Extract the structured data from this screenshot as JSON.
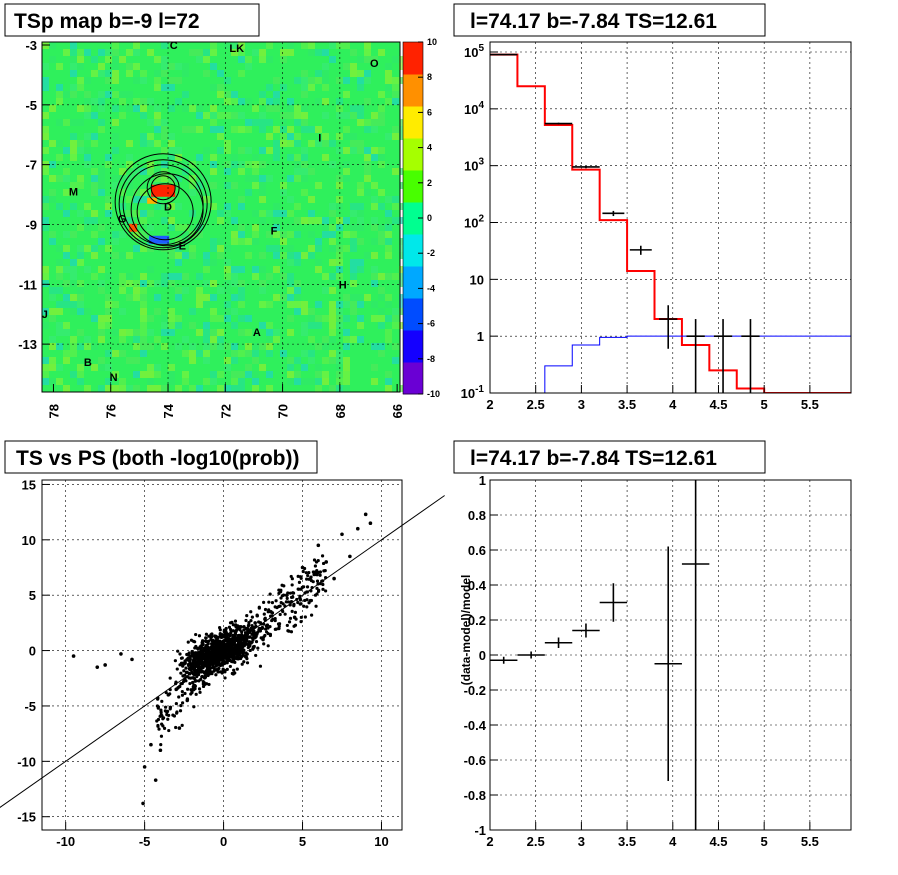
{
  "chart_data": [
    {
      "type": "heatmap",
      "title": "TSp map b=-9 l=72",
      "x_ticks": [
        "78",
        "76",
        "74",
        "72",
        "70",
        "68",
        "66"
      ],
      "y_ticks": [
        "-3",
        "-5",
        "-7",
        "-9",
        "-11",
        "-13"
      ],
      "xlim": [
        78.4,
        65.9
      ],
      "ylim": [
        -14.6,
        -2.9
      ],
      "colorbar": {
        "range": [
          -10,
          10
        ],
        "ticks": [
          "10",
          "8",
          "6",
          "4",
          "2",
          "0",
          "-2",
          "-4",
          "-6",
          "-8",
          "-10"
        ],
        "colors": [
          "#6a00d4",
          "#1400ff",
          "#004cff",
          "#00a8ff",
          "#00e8ea",
          "#00ff90",
          "#48ff00",
          "#a6ff00",
          "#ffec00",
          "#ff9000",
          "#ff2200"
        ]
      },
      "background_color": "#2ff05c",
      "source_labels": [
        {
          "text": "C",
          "l": 73.8,
          "b": -3.0
        },
        {
          "text": "LK",
          "l": 71.6,
          "b": -3.1
        },
        {
          "text": "O",
          "l": 66.8,
          "b": -3.6
        },
        {
          "text": "I",
          "l": 68.7,
          "b": -6.1
        },
        {
          "text": "M",
          "l": 77.3,
          "b": -7.9
        },
        {
          "text": "D",
          "l": 74.0,
          "b": -8.4
        },
        {
          "text": "G",
          "l": 75.6,
          "b": -8.8
        },
        {
          "text": "E",
          "l": 73.5,
          "b": -9.7
        },
        {
          "text": "F",
          "l": 70.3,
          "b": -9.2
        },
        {
          "text": "H",
          "l": 67.9,
          "b": -11.0
        },
        {
          "text": "J",
          "l": 78.3,
          "b": -12.0
        },
        {
          "text": "A",
          "l": 70.9,
          "b": -12.6
        },
        {
          "text": "B",
          "l": 76.8,
          "b": -13.6
        },
        {
          "text": "N",
          "l": 75.9,
          "b": -14.1
        }
      ],
      "target": {
        "l": 74.17,
        "b": -7.84
      }
    },
    {
      "type": "line",
      "title": "l=74.17 b=-7.84 TS=12.61",
      "y_scale": "log",
      "xlim": [
        2.0,
        5.95
      ],
      "ylim": [
        0.1,
        150000
      ],
      "x_ticks": [
        "2",
        "2.5",
        "3",
        "3.5",
        "4",
        "4.5",
        "5",
        "5.5"
      ],
      "y_ticks": [
        "10^5",
        "10^4",
        "10^3",
        "10^2",
        "10",
        "1",
        "10^-1"
      ],
      "bin_edges": [
        2.0,
        2.3,
        2.6,
        2.9,
        3.2,
        3.5,
        3.8,
        4.1,
        4.4,
        4.7,
        5.0,
        5.95
      ],
      "series": [
        {
          "name": "",
          "color": "#ff0000",
          "style": "step",
          "values": [
            90000,
            25000,
            5200,
            850,
            110,
            14,
            2.0,
            0.7,
            0.25,
            0.12,
            0.1
          ]
        },
        {
          "name": "",
          "color": "#0000ff",
          "style": "step",
          "values": [
            0.1,
            0.1,
            0.3,
            0.7,
            0.95,
            1.0,
            1.0,
            1.0,
            1.0,
            1.0,
            1.0
          ]
        }
      ],
      "data_points": [
        {
          "x": 2.15,
          "y": 90000,
          "xerr": 0.15,
          "ylow": 88000,
          "yhigh": 92000
        },
        {
          "x": 2.75,
          "y": 5500,
          "xerr": 0.15,
          "ylow": 5300,
          "yhigh": 5700
        },
        {
          "x": 3.05,
          "y": 950,
          "xerr": 0.15,
          "ylow": 900,
          "yhigh": 1000
        },
        {
          "x": 3.35,
          "y": 145,
          "xerr": 0.12,
          "ylow": 130,
          "yhigh": 160
        },
        {
          "x": 3.65,
          "y": 33,
          "xerr": 0.12,
          "ylow": 27,
          "yhigh": 39
        },
        {
          "x": 3.95,
          "y": 2.0,
          "xerr": 0.1,
          "ylow": 0.6,
          "yhigh": 3.5
        },
        {
          "x": 4.25,
          "y": 1.0,
          "xerr": 0.1,
          "ylow": 0.1,
          "yhigh": 2.0
        },
        {
          "x": 4.55,
          "y": 1.0,
          "xerr": 0.1,
          "ylow": 0.1,
          "yhigh": 2.0
        },
        {
          "x": 4.85,
          "y": 1.0,
          "xerr": 0.1,
          "ylow": 0.1,
          "yhigh": 2.0
        }
      ]
    },
    {
      "type": "scatter",
      "title": "TS vs PS (both -log10(prob))",
      "xlim": [
        -11.5,
        11.3
      ],
      "ylim": [
        -16.2,
        15.4
      ],
      "x_ticks": [
        "-10",
        "-5",
        "0",
        "5",
        "10"
      ],
      "y_ticks": [
        "15",
        "10",
        "5",
        "0",
        "-5",
        "-10",
        "-15"
      ],
      "reference_line": {
        "slope": 1.0,
        "intercept": 0
      },
      "points_sample": [
        [
          -9.5,
          -0.5
        ],
        [
          -8.0,
          -1.5
        ],
        [
          -7.5,
          -1.3
        ],
        [
          -6.5,
          -0.3
        ],
        [
          -5.8,
          -0.8
        ],
        [
          -5.1,
          -13.8
        ],
        [
          -5.0,
          -10.5
        ],
        [
          -4.6,
          -8.5
        ],
        [
          -4.3,
          -11.7
        ],
        [
          -4.0,
          -9.0
        ],
        [
          -3.5,
          -4.0
        ],
        [
          -3.0,
          -3.5
        ],
        [
          -2.8,
          -7.0
        ],
        [
          -2.3,
          -4.5
        ],
        [
          -2.0,
          -2.0
        ],
        [
          -1.5,
          -1.0
        ],
        [
          -1.0,
          -0.5
        ],
        [
          -0.5,
          0.3
        ],
        [
          0.0,
          0.2
        ],
        [
          0.5,
          0.5
        ],
        [
          1.0,
          0.8
        ],
        [
          1.5,
          1.5
        ],
        [
          2.0,
          2.5
        ],
        [
          2.5,
          1.0
        ],
        [
          3.0,
          3.5
        ],
        [
          3.5,
          2.0
        ],
        [
          4.0,
          5.0
        ],
        [
          4.5,
          3.0
        ],
        [
          5.0,
          7.5
        ],
        [
          5.5,
          4.5
        ],
        [
          6.0,
          9.5
        ],
        [
          6.5,
          8.0
        ],
        [
          7.0,
          6.5
        ],
        [
          7.5,
          10.5
        ],
        [
          8.0,
          8.5
        ],
        [
          8.5,
          11.0
        ],
        [
          9.0,
          12.3
        ],
        [
          9.3,
          11.5
        ]
      ]
    },
    {
      "type": "line",
      "title": "l=74.17 b=-7.84 TS=12.61",
      "ylabel": "(data-model)/model",
      "xlim": [
        2.0,
        5.95
      ],
      "ylim": [
        -1.0,
        1.0
      ],
      "x_ticks": [
        "2",
        "2.5",
        "3",
        "3.5",
        "4",
        "4.5",
        "5",
        "5.5"
      ],
      "y_ticks": [
        "1",
        "0.8",
        "0.6",
        "0.4",
        "0.2",
        "0",
        "-0.2",
        "-0.4",
        "-0.6",
        "-0.8",
        "-1"
      ],
      "data_points": [
        {
          "x": 2.15,
          "y": -0.03,
          "xerr": 0.15,
          "ylow": -0.05,
          "yhigh": -0.01
        },
        {
          "x": 2.45,
          "y": 0.0,
          "xerr": 0.15,
          "ylow": -0.02,
          "yhigh": 0.02
        },
        {
          "x": 2.75,
          "y": 0.07,
          "xerr": 0.15,
          "ylow": 0.04,
          "yhigh": 0.1
        },
        {
          "x": 3.05,
          "y": 0.14,
          "xerr": 0.15,
          "ylow": 0.1,
          "yhigh": 0.18
        },
        {
          "x": 3.35,
          "y": 0.3,
          "xerr": 0.15,
          "ylow": 0.19,
          "yhigh": 0.41
        },
        {
          "x": 3.95,
          "y": -0.05,
          "xerr": 0.15,
          "ylow": -0.72,
          "yhigh": 0.62
        },
        {
          "x": 4.25,
          "y": 0.52,
          "xerr": 0.15,
          "ylow": -1.0,
          "yhigh": 1.0
        }
      ]
    }
  ]
}
